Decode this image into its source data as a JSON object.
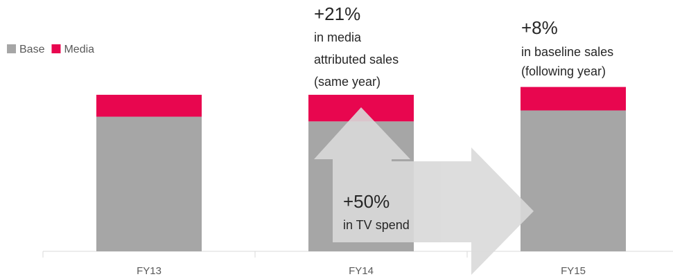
{
  "chart_data": {
    "type": "stacked_bar",
    "categories": [
      "FY13",
      "FY14",
      "FY15"
    ],
    "series": [
      {
        "name": "Base",
        "color": "#a6a6a6",
        "values": [
          86,
          83,
          90
        ]
      },
      {
        "name": "Media",
        "color": "#e8064f",
        "values": [
          14,
          17,
          15
        ]
      }
    ],
    "ylim": [
      0,
      115
    ],
    "legend": "top-left",
    "annotations": [
      {
        "title": "+21%",
        "lines": [
          "in media",
          "attributed sales",
          "(same year)"
        ]
      },
      {
        "title": "+8%",
        "lines": [
          "in baseline sales",
          "(following year)"
        ]
      },
      {
        "title": "+50%",
        "lines": [
          "in TV spend"
        ]
      }
    ]
  }
}
